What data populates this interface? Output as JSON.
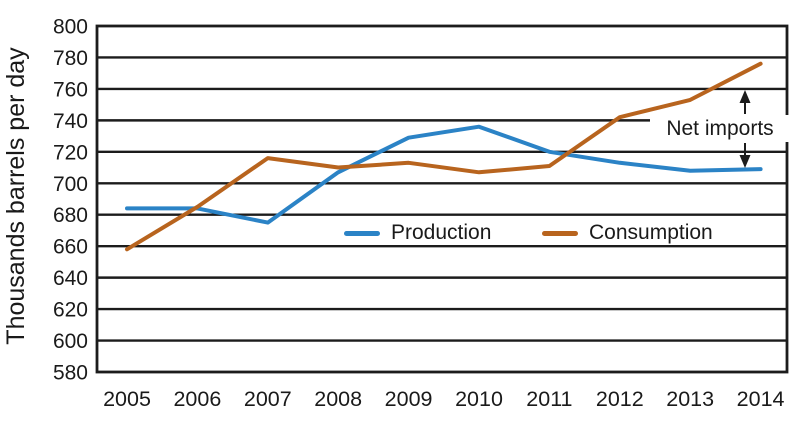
{
  "chart_data": {
    "type": "line",
    "title": "",
    "xlabel": "",
    "ylabel": "Thousands barrels per day",
    "categories": [
      "2005",
      "2006",
      "2007",
      "2008",
      "2009",
      "2010",
      "2011",
      "2012",
      "2013",
      "2014"
    ],
    "series": [
      {
        "name": "Production",
        "color": "#2b83c6",
        "values": [
          684,
          684,
          675,
          707,
          729,
          736,
          720,
          713,
          708,
          709
        ]
      },
      {
        "name": "Consumption",
        "color": "#b8641e",
        "values": [
          658,
          685,
          716,
          710,
          713,
          707,
          711,
          742,
          753,
          776
        ]
      }
    ],
    "ylim": [
      580,
      800
    ],
    "yticks": [
      580,
      600,
      620,
      640,
      660,
      680,
      700,
      720,
      740,
      760,
      780,
      800
    ],
    "grid": "horizontal",
    "legend_position": "inside-center",
    "annotation": {
      "text": "Net imports",
      "between": [
        "Consumption",
        "Production"
      ],
      "near_x": "2014"
    }
  }
}
